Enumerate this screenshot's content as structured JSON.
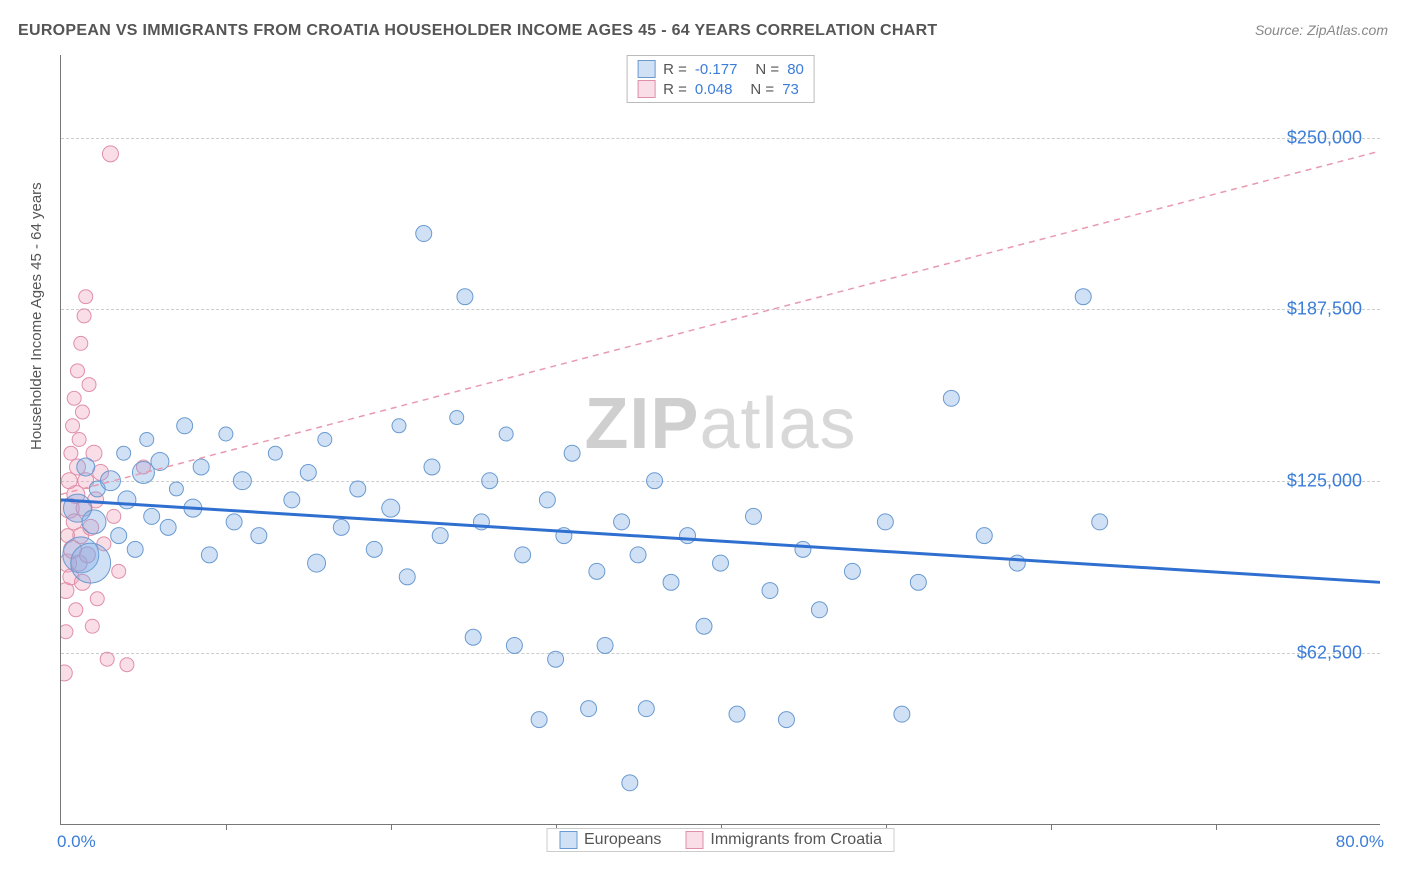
{
  "title": "EUROPEAN VS IMMIGRANTS FROM CROATIA HOUSEHOLDER INCOME AGES 45 - 64 YEARS CORRELATION CHART",
  "source": "Source: ZipAtlas.com",
  "ylabel": "Householder Income Ages 45 - 64 years",
  "watermark_a": "ZIP",
  "watermark_b": "atlas",
  "chart": {
    "type": "scatter",
    "xlim": [
      0,
      80
    ],
    "ylim": [
      0,
      280000
    ],
    "x_start_label": "0.0%",
    "x_end_label": "80.0%",
    "x_ticks": [
      10,
      20,
      30,
      40,
      50,
      60,
      70
    ],
    "y_gridlines": [
      {
        "value": 62500,
        "label": "$62,500"
      },
      {
        "value": 125000,
        "label": "$125,000"
      },
      {
        "value": 187500,
        "label": "$187,500"
      },
      {
        "value": 250000,
        "label": "$250,000"
      }
    ],
    "grid_color": "#cccccc",
    "background_color": "#ffffff",
    "tick_label_color": "#3b7dd8",
    "tick_label_fontsize": 18
  },
  "series": {
    "europeans": {
      "label": "Europeans",
      "color_fill": "rgba(120,170,230,0.35)",
      "color_stroke": "#6a9ad0",
      "trend_color": "#2f6fd0",
      "trend_width": 3,
      "trend_dash": "none",
      "R": "-0.177",
      "N": "80",
      "trend": {
        "x1": 0,
        "y1": 118000,
        "x2": 80,
        "y2": 88000
      },
      "points": [
        {
          "x": 1.0,
          "y": 115000,
          "r": 14
        },
        {
          "x": 1.2,
          "y": 98000,
          "r": 18
        },
        {
          "x": 1.5,
          "y": 130000,
          "r": 9
        },
        {
          "x": 1.8,
          "y": 95000,
          "r": 20
        },
        {
          "x": 2.0,
          "y": 110000,
          "r": 12
        },
        {
          "x": 2.2,
          "y": 122000,
          "r": 8
        },
        {
          "x": 3.0,
          "y": 125000,
          "r": 10
        },
        {
          "x": 3.5,
          "y": 105000,
          "r": 8
        },
        {
          "x": 3.8,
          "y": 135000,
          "r": 7
        },
        {
          "x": 4.0,
          "y": 118000,
          "r": 9
        },
        {
          "x": 4.5,
          "y": 100000,
          "r": 8
        },
        {
          "x": 5.0,
          "y": 128000,
          "r": 11
        },
        {
          "x": 5.2,
          "y": 140000,
          "r": 7
        },
        {
          "x": 5.5,
          "y": 112000,
          "r": 8
        },
        {
          "x": 6.0,
          "y": 132000,
          "r": 9
        },
        {
          "x": 6.5,
          "y": 108000,
          "r": 8
        },
        {
          "x": 7.0,
          "y": 122000,
          "r": 7
        },
        {
          "x": 7.5,
          "y": 145000,
          "r": 8
        },
        {
          "x": 8.0,
          "y": 115000,
          "r": 9
        },
        {
          "x": 8.5,
          "y": 130000,
          "r": 8
        },
        {
          "x": 9.0,
          "y": 98000,
          "r": 8
        },
        {
          "x": 10.0,
          "y": 142000,
          "r": 7
        },
        {
          "x": 10.5,
          "y": 110000,
          "r": 8
        },
        {
          "x": 11.0,
          "y": 125000,
          "r": 9
        },
        {
          "x": 12.0,
          "y": 105000,
          "r": 8
        },
        {
          "x": 13.0,
          "y": 135000,
          "r": 7
        },
        {
          "x": 14.0,
          "y": 118000,
          "r": 8
        },
        {
          "x": 15.0,
          "y": 128000,
          "r": 8
        },
        {
          "x": 15.5,
          "y": 95000,
          "r": 9
        },
        {
          "x": 16.0,
          "y": 140000,
          "r": 7
        },
        {
          "x": 17.0,
          "y": 108000,
          "r": 8
        },
        {
          "x": 18.0,
          "y": 122000,
          "r": 8
        },
        {
          "x": 19.0,
          "y": 100000,
          "r": 8
        },
        {
          "x": 20.0,
          "y": 115000,
          "r": 9
        },
        {
          "x": 20.5,
          "y": 145000,
          "r": 7
        },
        {
          "x": 21.0,
          "y": 90000,
          "r": 8
        },
        {
          "x": 22.0,
          "y": 215000,
          "r": 8
        },
        {
          "x": 22.5,
          "y": 130000,
          "r": 8
        },
        {
          "x": 23.0,
          "y": 105000,
          "r": 8
        },
        {
          "x": 24.0,
          "y": 148000,
          "r": 7
        },
        {
          "x": 24.5,
          "y": 192000,
          "r": 8
        },
        {
          "x": 25.0,
          "y": 68000,
          "r": 8
        },
        {
          "x": 25.5,
          "y": 110000,
          "r": 8
        },
        {
          "x": 26.0,
          "y": 125000,
          "r": 8
        },
        {
          "x": 27.0,
          "y": 142000,
          "r": 7
        },
        {
          "x": 27.5,
          "y": 65000,
          "r": 8
        },
        {
          "x": 28.0,
          "y": 98000,
          "r": 8
        },
        {
          "x": 29.0,
          "y": 38000,
          "r": 8
        },
        {
          "x": 29.5,
          "y": 118000,
          "r": 8
        },
        {
          "x": 30.0,
          "y": 60000,
          "r": 8
        },
        {
          "x": 30.5,
          "y": 105000,
          "r": 8
        },
        {
          "x": 31.0,
          "y": 135000,
          "r": 8
        },
        {
          "x": 32.0,
          "y": 42000,
          "r": 8
        },
        {
          "x": 32.5,
          "y": 92000,
          "r": 8
        },
        {
          "x": 33.0,
          "y": 65000,
          "r": 8
        },
        {
          "x": 34.0,
          "y": 110000,
          "r": 8
        },
        {
          "x": 34.5,
          "y": 15000,
          "r": 8
        },
        {
          "x": 35.0,
          "y": 98000,
          "r": 8
        },
        {
          "x": 35.5,
          "y": 42000,
          "r": 8
        },
        {
          "x": 36.0,
          "y": 125000,
          "r": 8
        },
        {
          "x": 37.0,
          "y": 88000,
          "r": 8
        },
        {
          "x": 38.0,
          "y": 105000,
          "r": 8
        },
        {
          "x": 39.0,
          "y": 72000,
          "r": 8
        },
        {
          "x": 40.0,
          "y": 95000,
          "r": 8
        },
        {
          "x": 41.0,
          "y": 40000,
          "r": 8
        },
        {
          "x": 42.0,
          "y": 112000,
          "r": 8
        },
        {
          "x": 43.0,
          "y": 85000,
          "r": 8
        },
        {
          "x": 44.0,
          "y": 38000,
          "r": 8
        },
        {
          "x": 45.0,
          "y": 100000,
          "r": 8
        },
        {
          "x": 46.0,
          "y": 78000,
          "r": 8
        },
        {
          "x": 48.0,
          "y": 92000,
          "r": 8
        },
        {
          "x": 50.0,
          "y": 110000,
          "r": 8
        },
        {
          "x": 51.0,
          "y": 40000,
          "r": 8
        },
        {
          "x": 52.0,
          "y": 88000,
          "r": 8
        },
        {
          "x": 54.0,
          "y": 155000,
          "r": 8
        },
        {
          "x": 56.0,
          "y": 105000,
          "r": 8
        },
        {
          "x": 58.0,
          "y": 95000,
          "r": 8
        },
        {
          "x": 62.0,
          "y": 192000,
          "r": 8
        },
        {
          "x": 63.0,
          "y": 110000,
          "r": 8
        }
      ]
    },
    "croatia": {
      "label": "Immigrants from Croatia",
      "color_fill": "rgba(240,160,185,0.35)",
      "color_stroke": "#e08fa8",
      "trend_color": "#e89ab0",
      "trend_width": 1.5,
      "trend_dash": "6,5",
      "R": "0.048",
      "N": "73",
      "trend": {
        "x1": 0,
        "y1": 120000,
        "x2": 80,
        "y2": 245000
      },
      "points": [
        {
          "x": 0.2,
          "y": 55000,
          "r": 8
        },
        {
          "x": 0.3,
          "y": 70000,
          "r": 7
        },
        {
          "x": 0.3,
          "y": 85000,
          "r": 8
        },
        {
          "x": 0.4,
          "y": 95000,
          "r": 9
        },
        {
          "x": 0.4,
          "y": 105000,
          "r": 7
        },
        {
          "x": 0.5,
          "y": 115000,
          "r": 10
        },
        {
          "x": 0.5,
          "y": 125000,
          "r": 8
        },
        {
          "x": 0.6,
          "y": 90000,
          "r": 8
        },
        {
          "x": 0.6,
          "y": 135000,
          "r": 7
        },
        {
          "x": 0.7,
          "y": 100000,
          "r": 9
        },
        {
          "x": 0.7,
          "y": 145000,
          "r": 7
        },
        {
          "x": 0.8,
          "y": 110000,
          "r": 8
        },
        {
          "x": 0.8,
          "y": 155000,
          "r": 7
        },
        {
          "x": 0.9,
          "y": 120000,
          "r": 9
        },
        {
          "x": 0.9,
          "y": 78000,
          "r": 7
        },
        {
          "x": 1.0,
          "y": 130000,
          "r": 8
        },
        {
          "x": 1.0,
          "y": 165000,
          "r": 7
        },
        {
          "x": 1.1,
          "y": 95000,
          "r": 8
        },
        {
          "x": 1.1,
          "y": 140000,
          "r": 7
        },
        {
          "x": 1.2,
          "y": 175000,
          "r": 7
        },
        {
          "x": 1.2,
          "y": 105000,
          "r": 8
        },
        {
          "x": 1.3,
          "y": 150000,
          "r": 7
        },
        {
          "x": 1.3,
          "y": 88000,
          "r": 8
        },
        {
          "x": 1.4,
          "y": 185000,
          "r": 7
        },
        {
          "x": 1.4,
          "y": 115000,
          "r": 8
        },
        {
          "x": 1.5,
          "y": 192000,
          "r": 7
        },
        {
          "x": 1.5,
          "y": 125000,
          "r": 8
        },
        {
          "x": 1.6,
          "y": 98000,
          "r": 8
        },
        {
          "x": 1.7,
          "y": 160000,
          "r": 7
        },
        {
          "x": 1.8,
          "y": 108000,
          "r": 8
        },
        {
          "x": 1.9,
          "y": 72000,
          "r": 7
        },
        {
          "x": 2.0,
          "y": 135000,
          "r": 8
        },
        {
          "x": 2.1,
          "y": 118000,
          "r": 8
        },
        {
          "x": 2.2,
          "y": 82000,
          "r": 7
        },
        {
          "x": 2.4,
          "y": 128000,
          "r": 8
        },
        {
          "x": 2.6,
          "y": 102000,
          "r": 7
        },
        {
          "x": 2.8,
          "y": 60000,
          "r": 7
        },
        {
          "x": 3.0,
          "y": 244000,
          "r": 8
        },
        {
          "x": 3.2,
          "y": 112000,
          "r": 7
        },
        {
          "x": 3.5,
          "y": 92000,
          "r": 7
        },
        {
          "x": 4.0,
          "y": 58000,
          "r": 7
        },
        {
          "x": 5.0,
          "y": 130000,
          "r": 7
        }
      ]
    }
  }
}
